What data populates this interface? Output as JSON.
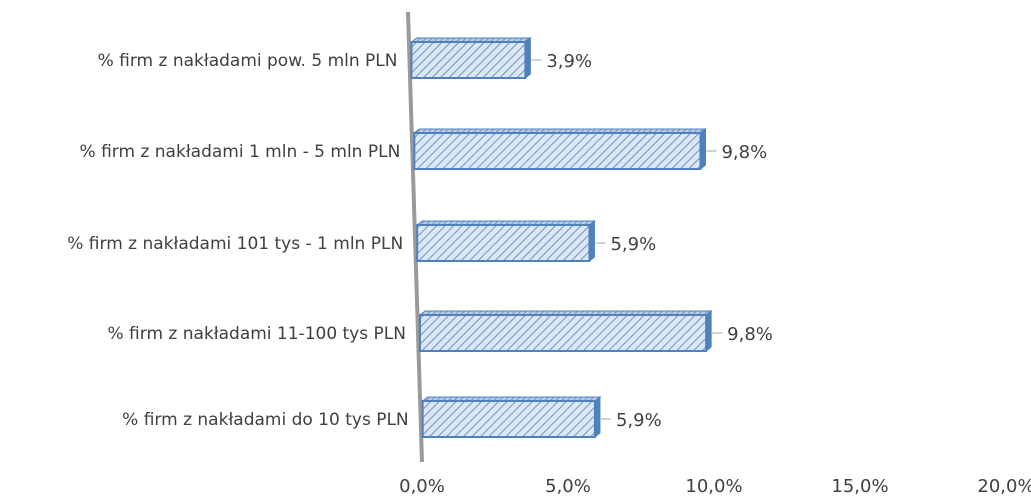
{
  "chart_data": {
    "type": "bar",
    "orientation": "horizontal",
    "categories": [
      "% firm z nakładami pow. 5 mln PLN",
      "% firm z nakładami 1 mln - 5 mln PLN",
      "% firm z nakładami 101 tys - 1 mln PLN",
      "% firm z nakładami 11-100 tys PLN",
      "% firm z nakładami do 10 tys PLN"
    ],
    "values": [
      3.9,
      9.8,
      5.9,
      9.8,
      5.9
    ],
    "value_labels": [
      "3,9%",
      "9,8%",
      "5,9%",
      "9,8%",
      "5,9%"
    ],
    "x_ticks": [
      "0,0%",
      "5,0%",
      "10,0%",
      "15,0%",
      "20,0%"
    ],
    "xlim": [
      0,
      20
    ],
    "title": "",
    "xlabel": "",
    "ylabel": "",
    "grid": false,
    "legend": "none",
    "bar_fill_color": "#dce6f4",
    "bar_hatch_color": "#4f81bd",
    "bar_edge_color": "#4f81bd",
    "axis_color": "#9a9a9a"
  }
}
